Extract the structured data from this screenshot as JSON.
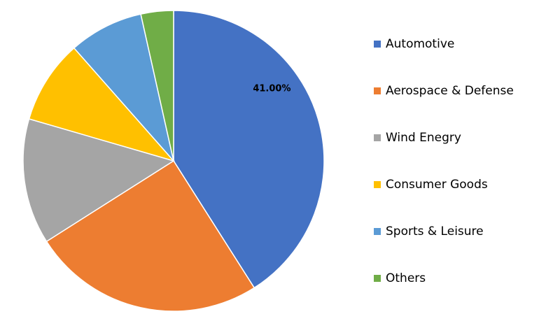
{
  "chart_data": {
    "type": "pie",
    "categories": [
      "Automotive",
      "Aerospace & Defense",
      "Wind Enegry",
      "Consumer Goods",
      "Sports & Leisure",
      "Others"
    ],
    "values": [
      41,
      25,
      13.5,
      9,
      8,
      3.5
    ],
    "value_labels": [
      "41.00%",
      null,
      null,
      null,
      null,
      null
    ],
    "colors": [
      "#4472c4",
      "#ed7d31",
      "#a5a5a5",
      "#ffc000",
      "#5b9bd5",
      "#70ad47"
    ],
    "legend": "right"
  }
}
